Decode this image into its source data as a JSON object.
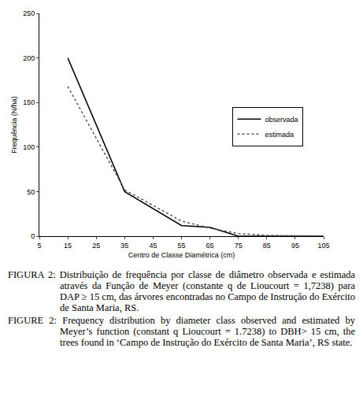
{
  "chart_data": {
    "type": "line",
    "x_label": "Centro de Classe Diamétrica (cm)",
    "y_label": "Frequência (N/ha)",
    "x": [
      15,
      35,
      55,
      65,
      75,
      85,
      95,
      105
    ],
    "series": [
      {
        "name": "observada",
        "color": "#000000",
        "line_style": "solid",
        "values": [
          200,
          50,
          12,
          10,
          0,
          0,
          0,
          0
        ]
      },
      {
        "name": "estimada",
        "color": "#555555",
        "line_style": "dotted",
        "values": [
          168,
          52,
          17,
          9,
          3,
          1,
          0.5,
          0.2
        ]
      }
    ],
    "xlim": [
      5,
      105
    ],
    "xticks": [
      5,
      15,
      25,
      35,
      45,
      55,
      65,
      75,
      85,
      95,
      105
    ],
    "ylim": [
      0,
      250
    ],
    "yticks": [
      0,
      50,
      100,
      150,
      200,
      250
    ],
    "grid": false,
    "legend": "right",
    "caption": [
      "FIGURA 2: Distribuição de frequência por classe de diâmetro observada e estimada através da Função de Meyer (constante q de Lioucourt = 1,7238) para DAP ≥ 15 cm, das árvores encontradas no Campo de Instrução do Exército de Santa Maria, RS.",
      "FIGURE 2: Frequency distribution by diameter class observed and estimated by Meyer’s function (constant q Lioucourt = 1.7238) to DBH> 15 cm, the trees found in ‘Campo de Instrução do Exército de Santa Maria’, RS state."
    ]
  }
}
